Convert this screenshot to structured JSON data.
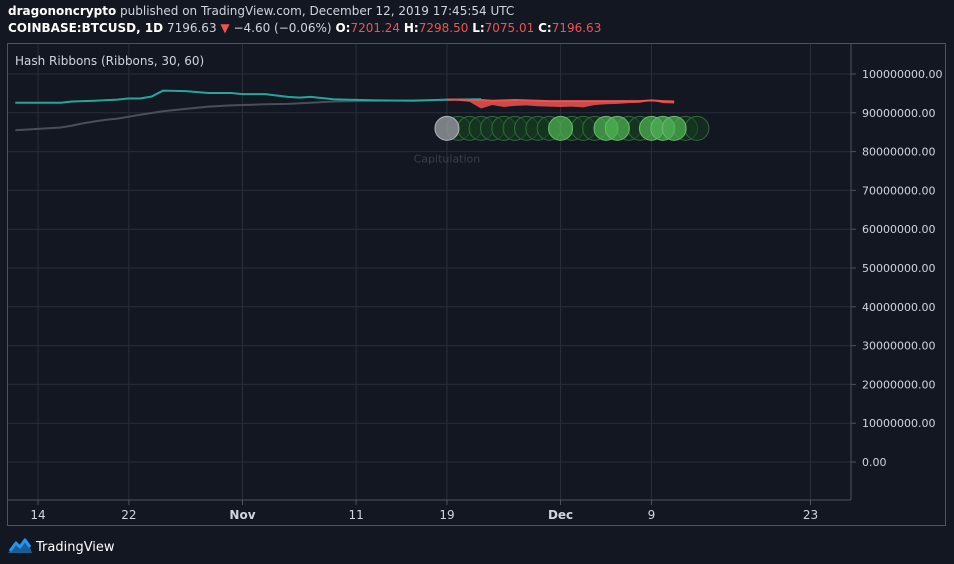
{
  "header": {
    "author": "dragononcrypto",
    "published_text": "published on TradingView.com, December 12, 2019 17:45:54 UTC",
    "symbol": "COINBASE:BTCUSD, 1D",
    "price": "7196.63",
    "change": "−4.60 (−0.06%)",
    "o_label": "O:",
    "o_value": "7201.24",
    "h_label": "H:",
    "h_value": "7298.50",
    "l_label": "L:",
    "l_value": "7075.01",
    "c_label": "C:",
    "c_value": "7196.63",
    "colors": {
      "down": "#ef5350"
    }
  },
  "footer": {
    "brand": "TradingView",
    "icon": "tradingview-logo-icon"
  },
  "chart_data": {
    "type": "line",
    "title": "Hash Ribbons (Ribbons, 30, 60)",
    "x_ticks": [
      "14",
      "22",
      "Nov",
      "11",
      "19",
      "Dec",
      "9",
      "23"
    ],
    "x_tick_days": [
      0,
      8,
      18,
      28,
      36,
      46,
      54,
      68
    ],
    "y_ticks": [
      "100000000.00",
      "90000000.00",
      "80000000.00",
      "70000000.00",
      "60000000.00",
      "50000000.00",
      "40000000.00",
      "30000000.00",
      "20000000.00",
      "10000000.00",
      "0.00"
    ],
    "ylim": [
      -5000000,
      110000000
    ],
    "grid": true,
    "series": [
      {
        "color": "#26a69a",
        "x": [
          -2,
          1,
          2,
          3,
          5,
          7,
          8,
          9,
          10,
          11,
          13,
          15,
          17,
          18,
          20,
          22,
          23,
          24,
          26,
          27,
          30,
          33,
          36,
          39
        ],
        "values": [
          92600000,
          92600000,
          92600000,
          92900000,
          93100000,
          93400000,
          93700000,
          93700000,
          94200000,
          95700000,
          95600000,
          95100000,
          95100000,
          94800000,
          94800000,
          94100000,
          93900000,
          94100000,
          93500000,
          93400000,
          93200000,
          93100000,
          93400000,
          93500000
        ]
      },
      {
        "color": "#4a4e59",
        "x": [
          -2,
          2,
          3,
          4,
          5,
          6,
          7,
          9,
          11,
          13,
          15,
          17,
          20,
          22,
          24,
          26,
          28,
          30,
          33,
          36,
          39
        ],
        "values": [
          85500000,
          86200000,
          86700000,
          87300000,
          87800000,
          88200000,
          88500000,
          89500000,
          90400000,
          91000000,
          91600000,
          91900000,
          92200000,
          92300000,
          92600000,
          92900000,
          93000000,
          93100000,
          93200000,
          93300000,
          93500000
        ]
      },
      {
        "color": "#ef5350",
        "x": [
          36,
          37,
          38,
          39,
          40,
          41,
          42,
          43,
          44,
          45,
          46,
          47,
          48,
          49,
          50,
          51,
          52,
          53,
          54,
          55,
          56
        ],
        "upper": [
          93400000,
          93400000,
          93300000,
          93300000,
          93100000,
          93200000,
          93300000,
          93200000,
          93100000,
          93000000,
          93000000,
          93000000,
          93000000,
          93000000,
          93000000,
          93000000,
          93000000,
          93000000,
          93200000,
          93000000,
          92900000
        ],
        "lower": [
          93400000,
          93100000,
          92800000,
          91100000,
          92000000,
          91500000,
          91800000,
          91900000,
          91700000,
          91600000,
          91500000,
          91600000,
          91400000,
          92000000,
          92200000,
          92300000,
          92500000,
          92600000,
          93200000,
          92500000,
          92400000
        ]
      }
    ],
    "signals": {
      "y": 86000000,
      "items": [
        {
          "day": 36,
          "kind": "capitulation"
        },
        {
          "day": 37,
          "kind": "faint"
        },
        {
          "day": 38,
          "kind": "faint"
        },
        {
          "day": 39,
          "kind": "faint"
        },
        {
          "day": 40,
          "kind": "faint"
        },
        {
          "day": 41,
          "kind": "faint"
        },
        {
          "day": 42,
          "kind": "faint"
        },
        {
          "day": 43,
          "kind": "faint"
        },
        {
          "day": 44,
          "kind": "faint"
        },
        {
          "day": 45,
          "kind": "faint"
        },
        {
          "day": 46,
          "kind": "buy"
        },
        {
          "day": 47,
          "kind": "faint"
        },
        {
          "day": 48,
          "kind": "faint"
        },
        {
          "day": 49,
          "kind": "faint"
        },
        {
          "day": 50,
          "kind": "buy"
        },
        {
          "day": 51,
          "kind": "buy"
        },
        {
          "day": 52,
          "kind": "faint"
        },
        {
          "day": 53,
          "kind": "faint"
        },
        {
          "day": 54,
          "kind": "buy"
        },
        {
          "day": 55,
          "kind": "buy"
        },
        {
          "day": 56,
          "kind": "buy"
        },
        {
          "day": 57,
          "kind": "faint"
        },
        {
          "day": 58,
          "kind": "faint"
        }
      ],
      "label": "Capitulation",
      "colors": {
        "capitulation": "#8d9096",
        "buy": "#4caf50",
        "faint": "#1e4a27"
      }
    }
  }
}
